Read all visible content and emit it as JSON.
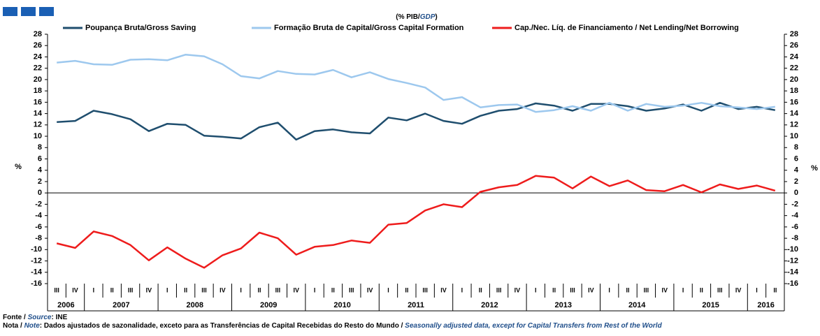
{
  "chart_data": {
    "type": "line",
    "subtitle": [
      "(% PIB/",
      "GDP",
      ")"
    ],
    "ylabel": "%",
    "y2label": "%",
    "categories": [
      "III",
      "IV",
      "I",
      "II",
      "III",
      "IV",
      "I",
      "II",
      "III",
      "IV",
      "I",
      "II",
      "III",
      "IV",
      "I",
      "II",
      "III",
      "IV",
      "I",
      "II",
      "III",
      "IV",
      "I",
      "II",
      "III",
      "IV",
      "I",
      "II",
      "III",
      "IV",
      "I",
      "II",
      "III",
      "IV",
      "I",
      "II",
      "III",
      "IV",
      "I",
      "II"
    ],
    "years": [
      "2006",
      "2007",
      "2008",
      "2009",
      "2010",
      "2011",
      "2012",
      "2013",
      "2014",
      "2015",
      "2016"
    ],
    "series": [
      {
        "name": "Poupança Bruta/Gross Saving",
        "color": "#1f4e6e",
        "values": [
          12.5,
          12.7,
          14.5,
          13.9,
          13.0,
          10.9,
          12.2,
          12.0,
          10.1,
          9.9,
          9.6,
          11.6,
          12.4,
          9.4,
          10.9,
          11.2,
          10.7,
          10.5,
          13.3,
          12.8,
          14.0,
          12.7,
          12.2,
          13.6,
          14.5,
          14.8,
          15.8,
          15.4,
          14.5,
          15.7,
          15.7,
          15.3,
          14.5,
          14.9,
          15.6,
          14.5,
          15.9,
          14.8,
          15.2,
          14.6
        ]
      },
      {
        "name": "Formação Bruta de Capital/Gross Capital Formation",
        "color": "#9dc8ee",
        "values": [
          23.0,
          23.3,
          22.7,
          22.6,
          23.5,
          23.6,
          23.4,
          24.4,
          24.1,
          22.7,
          20.6,
          20.2,
          21.5,
          21.0,
          20.9,
          21.7,
          20.4,
          21.3,
          20.1,
          19.4,
          18.6,
          16.4,
          16.9,
          15.1,
          15.5,
          15.6,
          14.3,
          14.6,
          15.3,
          14.5,
          15.9,
          14.5,
          15.7,
          15.2,
          15.4,
          15.9,
          15.3,
          15.1,
          14.8,
          15.2
        ]
      },
      {
        "name": "Cap./Nec. Líq. de Financiamento / Net Lending/Net Borrowing",
        "color": "#ee1c1c",
        "values": [
          -8.9,
          -9.7,
          -6.8,
          -7.6,
          -9.2,
          -11.9,
          -9.6,
          -11.6,
          -13.2,
          -11.0,
          -9.8,
          -7.0,
          -8.0,
          -10.9,
          -9.5,
          -9.2,
          -8.4,
          -8.8,
          -5.6,
          -5.3,
          -3.1,
          -2.0,
          -2.5,
          0.2,
          1.0,
          1.4,
          3.0,
          2.7,
          0.8,
          2.9,
          1.2,
          2.2,
          0.5,
          0.3,
          1.4,
          0.1,
          1.5,
          0.7,
          1.3,
          0.4
        ]
      }
    ],
    "ylim": [
      -16,
      28
    ],
    "yticks": [
      -16,
      -14,
      -12,
      -10,
      -8,
      -6,
      -4,
      -2,
      0,
      2,
      4,
      6,
      8,
      10,
      12,
      14,
      16,
      18,
      20,
      22,
      24,
      26,
      28
    ],
    "y2lim": [
      -16,
      28
    ],
    "y2ticks": [
      -16,
      -14,
      -12,
      -10,
      -8,
      -6,
      -4,
      -2,
      0,
      2,
      4,
      6,
      8,
      10,
      12,
      14,
      16,
      18,
      20,
      22,
      24,
      26,
      28
    ],
    "legend": "top",
    "source": [
      "Fonte / ",
      "Source",
      ":  INE"
    ],
    "note": [
      "Nota / ",
      "Note",
      ": Dados ajustados de sazonalidade, exceto para as Transferências de Capital Recebidas do Resto do Mundo / ",
      "Seasonally adjusted data, except for Capital Transfers from Rest of the World"
    ]
  }
}
